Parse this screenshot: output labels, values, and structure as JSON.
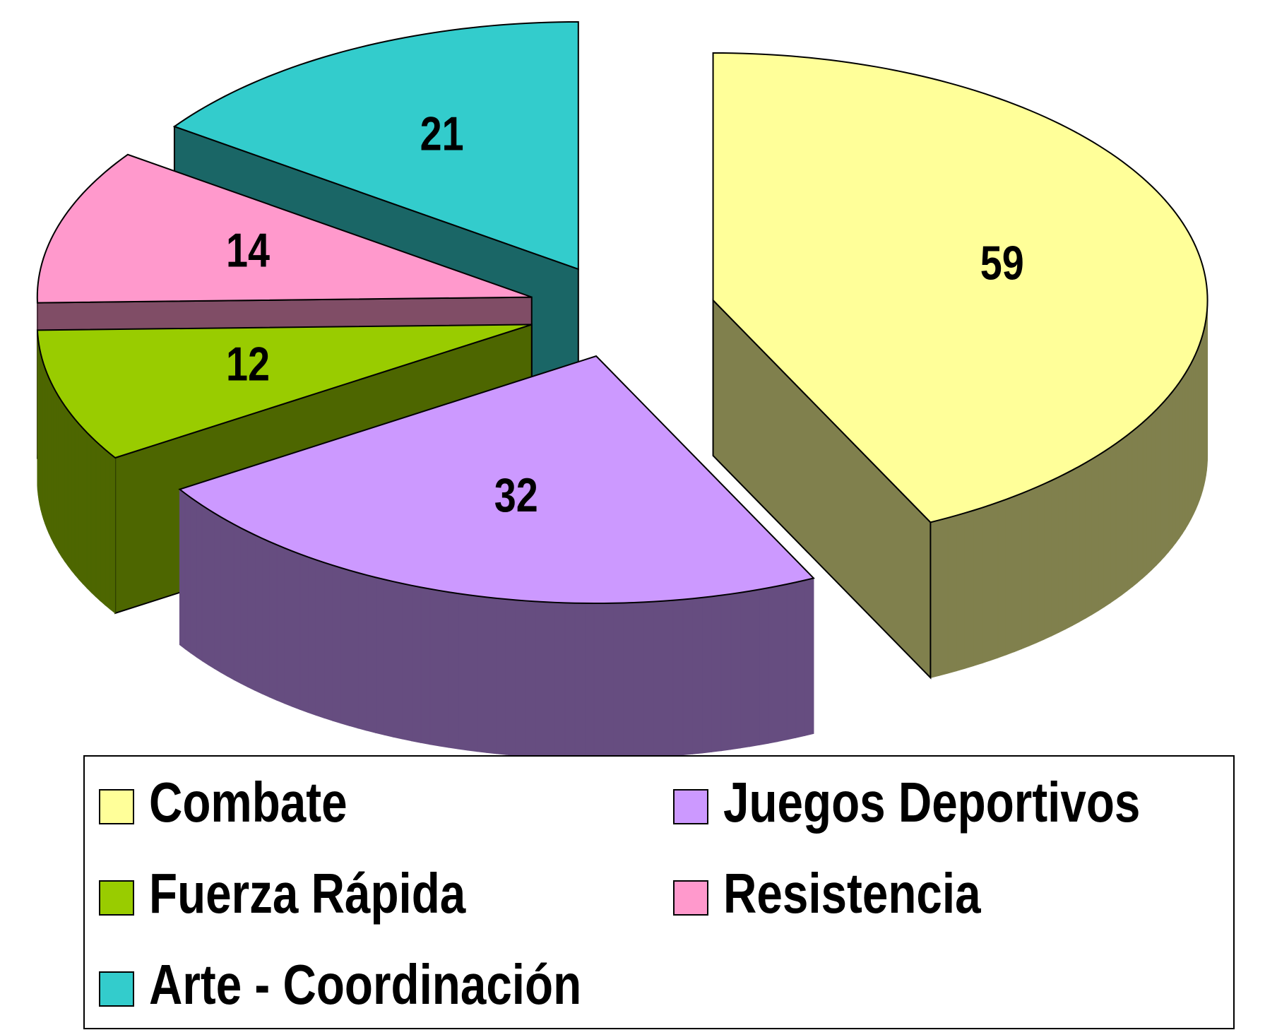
{
  "chart_data": {
    "type": "pie3d",
    "categories": [
      "Combate",
      "Juegos Deportivos",
      "Fuerza Rápida",
      "Resistencia",
      "Arte - Coordinación"
    ],
    "values": [
      59,
      32,
      12,
      14,
      21
    ],
    "colors": [
      "#ffff99",
      "#cc99ff",
      "#99cc00",
      "#ff99cc",
      "#33cccc"
    ],
    "legend": "bottom"
  }
}
